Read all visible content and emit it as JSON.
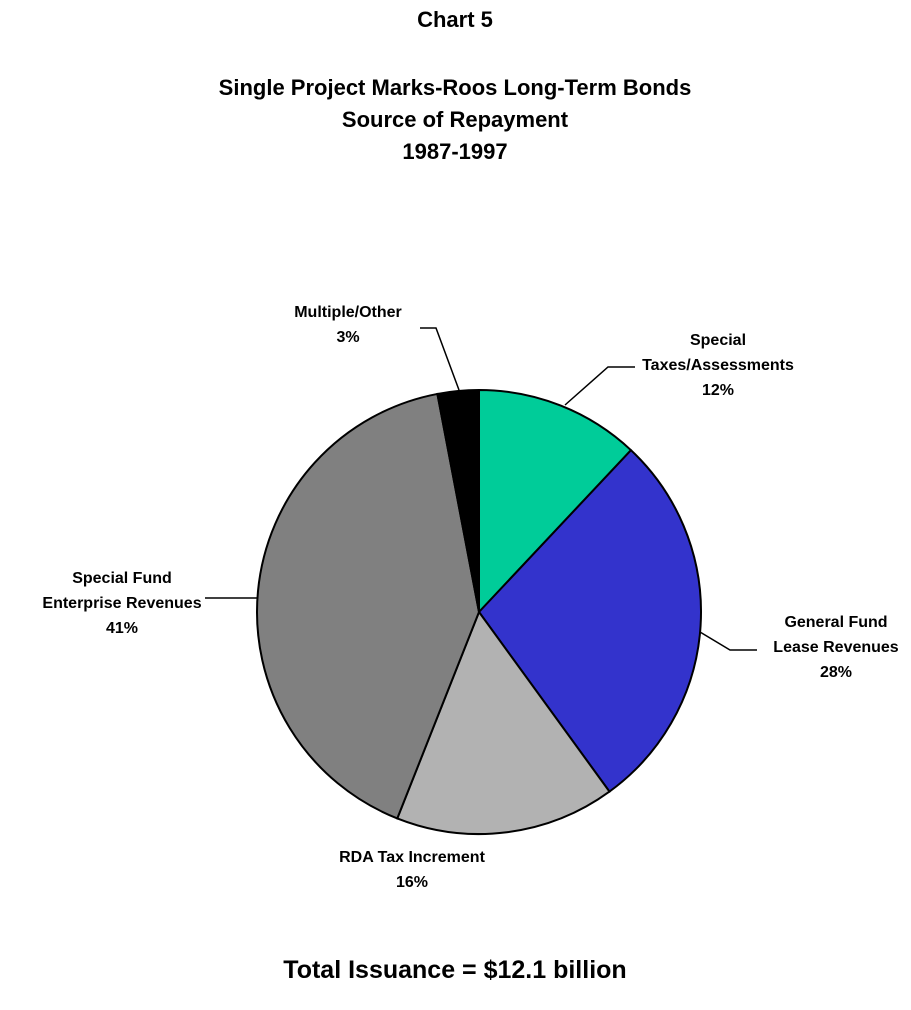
{
  "header": {
    "chart_number": "Chart 5",
    "title_line1": "Single Project Marks-Roos Long-Term Bonds",
    "title_line2": "Source of Repayment",
    "title_line3": "1987-1997"
  },
  "footer": {
    "total": "Total Issuance = $12.1 billion"
  },
  "chart_data": {
    "type": "pie",
    "start": "12 o'clock",
    "direction": "clockwise",
    "slices": [
      {
        "lines": [
          "Special",
          "Taxes/Assessments"
        ],
        "percent_label": "12%",
        "value": 12,
        "color": "#00CC99"
      },
      {
        "lines": [
          "General Fund",
          "Lease Revenues"
        ],
        "percent_label": "28%",
        "value": 28,
        "color": "#3333CC"
      },
      {
        "lines": [
          "RDA Tax Increment"
        ],
        "percent_label": "16%",
        "value": 16,
        "color": "#B2B2B2"
      },
      {
        "lines": [
          "Special Fund",
          "Enterprise Revenues"
        ],
        "percent_label": "41%",
        "value": 41,
        "color": "#808080"
      },
      {
        "lines": [
          "Multiple/Other"
        ],
        "percent_label": "3%",
        "value": 3,
        "color": "#000000"
      }
    ]
  }
}
